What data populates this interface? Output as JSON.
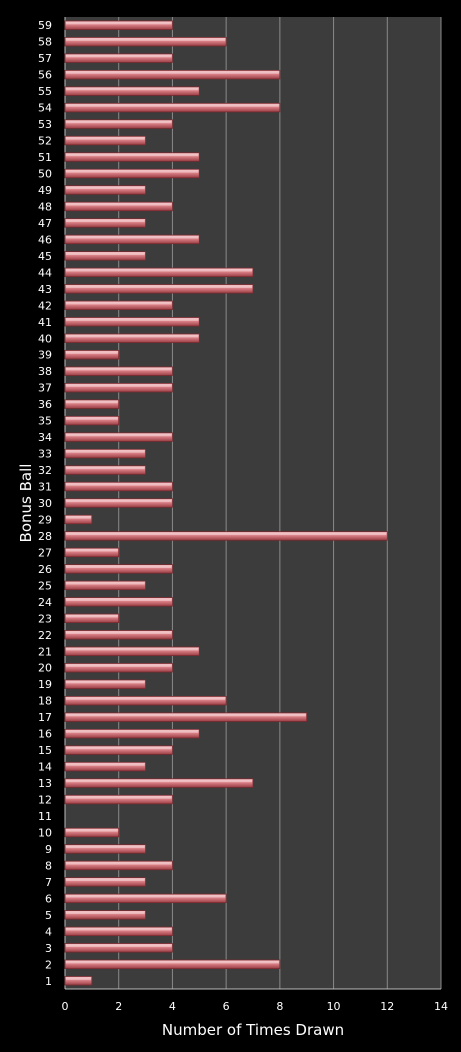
{
  "chart_data": {
    "type": "bar",
    "orientation": "horizontal",
    "title": "",
    "xlabel": "Number of Times Drawn",
    "ylabel": "Bonus Ball",
    "xlim": [
      0,
      14
    ],
    "xticks": [
      0,
      2,
      4,
      6,
      8,
      10,
      12,
      14
    ],
    "grid": true,
    "categories": [
      "1",
      "2",
      "3",
      "4",
      "5",
      "6",
      "7",
      "8",
      "9",
      "10",
      "11",
      "12",
      "13",
      "14",
      "15",
      "16",
      "17",
      "18",
      "19",
      "20",
      "21",
      "22",
      "23",
      "24",
      "25",
      "26",
      "27",
      "28",
      "29",
      "30",
      "31",
      "32",
      "33",
      "34",
      "35",
      "36",
      "37",
      "38",
      "39",
      "40",
      "41",
      "42",
      "43",
      "44",
      "45",
      "46",
      "47",
      "48",
      "49",
      "50",
      "51",
      "52",
      "53",
      "54",
      "55",
      "56",
      "57",
      "58",
      "59"
    ],
    "values": [
      1,
      8,
      4,
      4,
      3,
      6,
      3,
      4,
      3,
      2,
      0,
      4,
      7,
      3,
      4,
      5,
      9,
      6,
      3,
      4,
      5,
      4,
      2,
      4,
      3,
      4,
      2,
      12,
      1,
      4,
      4,
      3,
      3,
      4,
      2,
      2,
      4,
      4,
      2,
      5,
      5,
      4,
      7,
      7,
      3,
      5,
      3,
      4,
      3,
      5,
      5,
      3,
      4,
      8,
      5,
      8,
      4,
      6,
      4
    ],
    "colors": {
      "background": "#000000",
      "plot_area": "#3c3c3c",
      "gridline": "#8a8a8a",
      "bar_fill": "#d97f85",
      "bar_edge": "#7a2a30",
      "text": "#ffffff"
    }
  }
}
